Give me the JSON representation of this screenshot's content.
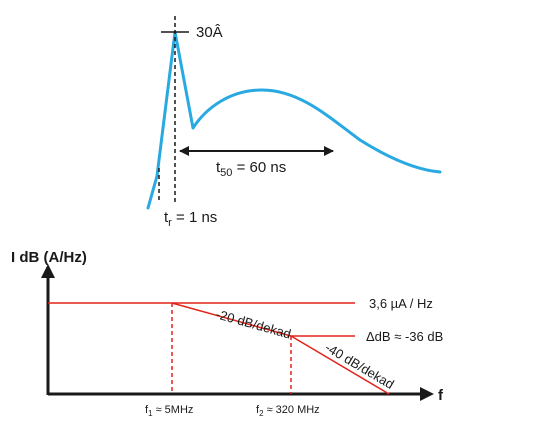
{
  "pulse": {
    "peak_label": "30Â",
    "t50_main": "t",
    "t50_sub": "50",
    "t50_rest": " = 60 ns",
    "tr_main": "t",
    "tr_sub": "r",
    "tr_rest": " = 1 ns"
  },
  "spectrum": {
    "y_axis_label": "I dB (A/Hz)",
    "x_axis_label": "f",
    "level_label": "3,6 µA / Hz",
    "delta_label": "ΔdB ≈ -36 dB",
    "slope1_label": "-20 dB/dekad",
    "slope2_label": "-40 dB/dekad",
    "f1_main": "f",
    "f1_sub": "1",
    "f1_rest": " ≈ 5MHz",
    "f2_main": "f",
    "f2_sub": "2",
    "f2_rest": " ≈ 320 MHz"
  },
  "colors": {
    "pulse_curve": "#29a9e1",
    "spectrum_curve": "#e2231a",
    "ink": "#1a1a1a"
  }
}
